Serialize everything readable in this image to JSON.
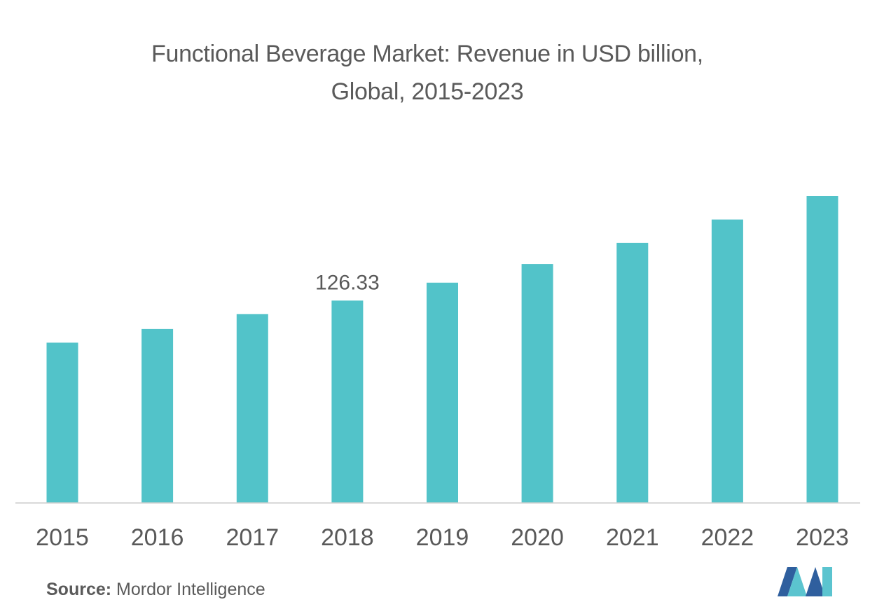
{
  "title_line1": "Functional Beverage Market: Revenue in USD billion,",
  "title_line2": "Global, 2015-2023",
  "source_label": "Source:",
  "source_value": "Mordor Intelligence",
  "colors": {
    "bar": "#52c3c9",
    "axis": "#d0d0d0",
    "text": "#595959"
  },
  "chart_data": {
    "type": "bar",
    "title": "Functional Beverage Market: Revenue in USD billion, Global, 2015-2023",
    "xlabel": "",
    "ylabel": "",
    "categories": [
      "2015",
      "2016",
      "2017",
      "2018",
      "2019",
      "2020",
      "2021",
      "2022",
      "2023"
    ],
    "values": [
      100,
      108.6,
      117.8,
      126.33,
      137.5,
      149.2,
      162.4,
      177,
      191.7
    ],
    "data_labels": [
      {
        "category": "2018",
        "label": "126.33"
      }
    ],
    "ylim": [
      0,
      191.7
    ],
    "grid": false,
    "legend": "none"
  }
}
